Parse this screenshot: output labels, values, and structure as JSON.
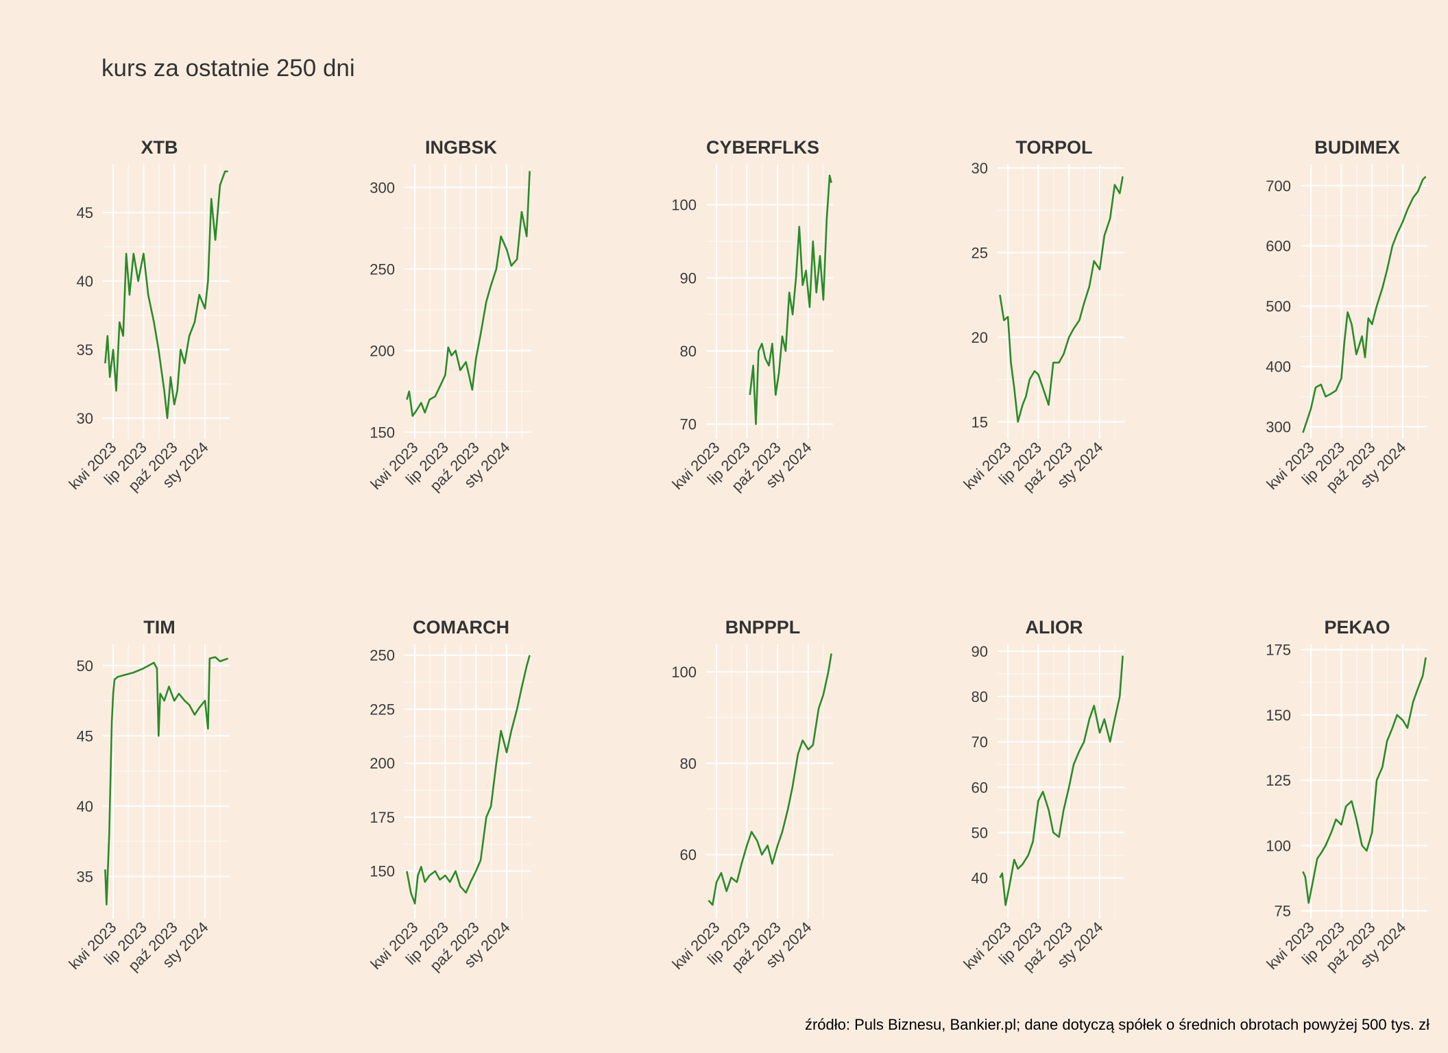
{
  "title": "kurs za ostatnie 250 dni",
  "caption": "źródło: Puls Biznesu, Bankier.pl; dane dotyczą spółek o średnich obrotach powyżej 500 tys. zł",
  "colors": {
    "background": "#faede0",
    "grid": "#ffffff",
    "line": "#2a8a2a",
    "text": "#3b3b3b"
  },
  "chart_data": [
    {
      "type": "line",
      "title": "XTB",
      "x_tick_labels": [
        "kwi 2023",
        "lip 2023",
        "paź 2023",
        "sty 2024"
      ],
      "y_ticks": [
        30,
        35,
        40,
        45
      ],
      "ylim": [
        28.5,
        48.5
      ],
      "series": [
        {
          "x": [
            "2023-03-08",
            "2023-03-15",
            "2023-03-22",
            "2023-04-01",
            "2023-04-10",
            "2023-04-20",
            "2023-05-01",
            "2023-05-10",
            "2023-05-20",
            "2023-06-01",
            "2023-06-15",
            "2023-07-01",
            "2023-07-15",
            "2023-08-01",
            "2023-08-15",
            "2023-09-01",
            "2023-09-10",
            "2023-09-20",
            "2023-10-01",
            "2023-10-10",
            "2023-10-20",
            "2023-11-01",
            "2023-11-15",
            "2023-12-01",
            "2023-12-15",
            "2024-01-01",
            "2024-01-10",
            "2024-01-20",
            "2024-02-01",
            "2024-02-15",
            "2024-03-01",
            "2024-03-10"
          ],
          "y": [
            34,
            36,
            33,
            35,
            32,
            37,
            36,
            42,
            39,
            42,
            40,
            42,
            39,
            37,
            35,
            32,
            30,
            33,
            31,
            32,
            35,
            34,
            36,
            37,
            39,
            38,
            40,
            46,
            43,
            47,
            48,
            48
          ]
        }
      ]
    },
    {
      "type": "line",
      "title": "INGBSK",
      "x_tick_labels": [
        "kwi 2023",
        "lip 2023",
        "paź 2023",
        "sty 2024"
      ],
      "y_ticks": [
        150,
        200,
        250,
        300
      ],
      "ylim": [
        146,
        314
      ],
      "series": [
        {
          "x": [
            "2023-03-08",
            "2023-03-15",
            "2023-03-25",
            "2023-04-05",
            "2023-04-20",
            "2023-05-01",
            "2023-05-15",
            "2023-06-01",
            "2023-06-15",
            "2023-07-01",
            "2023-07-10",
            "2023-07-20",
            "2023-08-01",
            "2023-08-15",
            "2023-09-01",
            "2023-09-10",
            "2023-09-20",
            "2023-10-01",
            "2023-10-15",
            "2023-11-01",
            "2023-11-15",
            "2023-12-01",
            "2023-12-15",
            "2024-01-01",
            "2024-01-15",
            "2024-02-01",
            "2024-02-15",
            "2024-03-01",
            "2024-03-10"
          ],
          "y": [
            170,
            175,
            160,
            163,
            168,
            162,
            170,
            172,
            178,
            185,
            202,
            197,
            200,
            188,
            193,
            185,
            176,
            195,
            210,
            230,
            240,
            250,
            270,
            262,
            252,
            256,
            285,
            270,
            310
          ]
        }
      ]
    },
    {
      "type": "line",
      "title": "CYBERFLKS",
      "x_tick_labels": [
        "kwi 2023",
        "lip 2023",
        "paź 2023",
        "sty 2024"
      ],
      "y_ticks": [
        70,
        80,
        90,
        100
      ],
      "ylim": [
        68,
        105.5
      ],
      "series": [
        {
          "x": [
            "2023-07-10",
            "2023-07-20",
            "2023-07-28",
            "2023-08-05",
            "2023-08-15",
            "2023-08-25",
            "2023-09-05",
            "2023-09-15",
            "2023-09-25",
            "2023-10-05",
            "2023-10-15",
            "2023-10-25",
            "2023-11-05",
            "2023-11-15",
            "2023-11-25",
            "2023-12-05",
            "2023-12-15",
            "2023-12-25",
            "2024-01-05",
            "2024-01-15",
            "2024-01-25",
            "2024-02-05",
            "2024-02-15",
            "2024-02-25",
            "2024-03-05",
            "2024-03-10"
          ],
          "y": [
            74,
            78,
            70,
            80,
            81,
            79,
            78,
            81,
            74,
            77,
            82,
            80,
            88,
            85,
            90,
            97,
            89,
            91,
            86,
            95,
            88,
            93,
            87,
            98,
            104,
            103
          ]
        }
      ]
    },
    {
      "type": "line",
      "title": "TORPOL",
      "x_tick_labels": [
        "kwi 2023",
        "lip 2023",
        "paź 2023",
        "sty 2024"
      ],
      "y_ticks": [
        15,
        20,
        25,
        30
      ],
      "ylim": [
        14,
        30.2
      ],
      "series": [
        {
          "x": [
            "2023-03-08",
            "2023-03-20",
            "2023-04-01",
            "2023-04-10",
            "2023-04-20",
            "2023-05-01",
            "2023-05-15",
            "2023-05-25",
            "2023-06-05",
            "2023-06-20",
            "2023-07-01",
            "2023-07-15",
            "2023-08-01",
            "2023-08-15",
            "2023-09-01",
            "2023-09-15",
            "2023-10-01",
            "2023-10-15",
            "2023-11-01",
            "2023-11-15",
            "2023-12-01",
            "2023-12-15",
            "2024-01-01",
            "2024-01-15",
            "2024-02-01",
            "2024-02-15",
            "2024-03-01",
            "2024-03-10"
          ],
          "y": [
            22.5,
            21,
            21.2,
            18.5,
            17,
            15,
            16,
            16.5,
            17.5,
            18,
            17.8,
            17,
            16,
            18.5,
            18.5,
            19,
            20,
            20.5,
            21,
            22,
            23,
            24.5,
            24,
            26,
            27,
            29,
            28.5,
            29.5
          ]
        }
      ]
    },
    {
      "type": "line",
      "title": "BUDIMEX",
      "x_tick_labels": [
        "kwi 2023",
        "lip 2023",
        "paź 2023",
        "sty 2024"
      ],
      "y_ticks": [
        300,
        400,
        500,
        600,
        700
      ],
      "ylim": [
        280,
        735
      ],
      "series": [
        {
          "x": [
            "2023-03-08",
            "2023-03-20",
            "2023-04-01",
            "2023-04-15",
            "2023-05-01",
            "2023-05-15",
            "2023-06-01",
            "2023-06-15",
            "2023-07-01",
            "2023-07-10",
            "2023-07-20",
            "2023-08-01",
            "2023-08-15",
            "2023-09-01",
            "2023-09-10",
            "2023-09-20",
            "2023-10-01",
            "2023-10-15",
            "2023-11-01",
            "2023-11-15",
            "2023-12-01",
            "2023-12-15",
            "2024-01-01",
            "2024-01-15",
            "2024-02-01",
            "2024-02-15",
            "2024-03-01",
            "2024-03-10"
          ],
          "y": [
            290,
            310,
            330,
            365,
            370,
            350,
            355,
            360,
            380,
            440,
            490,
            470,
            420,
            450,
            415,
            480,
            470,
            500,
            530,
            560,
            600,
            620,
            640,
            660,
            680,
            690,
            710,
            715
          ]
        }
      ]
    },
    {
      "type": "line",
      "title": "TIM",
      "x_tick_labels": [
        "kwi 2023",
        "lip 2023",
        "paź 2023",
        "sty 2024"
      ],
      "y_ticks": [
        35,
        40,
        45,
        50
      ],
      "ylim": [
        32,
        51.5
      ],
      "series": [
        {
          "x": [
            "2023-03-08",
            "2023-03-12",
            "2023-03-20",
            "2023-03-28",
            "2023-04-01",
            "2023-04-05",
            "2023-04-15",
            "2023-05-01",
            "2023-06-01",
            "2023-07-01",
            "2023-08-01",
            "2023-08-10",
            "2023-08-15",
            "2023-08-20",
            "2023-09-01",
            "2023-09-15",
            "2023-10-01",
            "2023-10-15",
            "2023-11-01",
            "2023-11-15",
            "2023-12-01",
            "2023-12-15",
            "2024-01-01",
            "2024-01-10",
            "2024-01-15",
            "2024-02-01",
            "2024-02-15",
            "2024-03-10"
          ],
          "y": [
            35.5,
            33,
            38,
            46,
            48,
            49,
            49.2,
            49.3,
            49.5,
            49.8,
            50.2,
            49.8,
            45,
            48,
            47.5,
            48.5,
            47.5,
            48,
            47.5,
            47.2,
            46.5,
            47,
            47.5,
            45.5,
            50.5,
            50.6,
            50.3,
            50.5
          ]
        }
      ]
    },
    {
      "type": "line",
      "title": "COMARCH",
      "x_tick_labels": [
        "kwi 2023",
        "lip 2023",
        "paź 2023",
        "sty 2024"
      ],
      "y_ticks": [
        150,
        175,
        200,
        225,
        250
      ],
      "ylim": [
        128,
        255
      ],
      "series": [
        {
          "x": [
            "2023-03-08",
            "2023-03-20",
            "2023-04-01",
            "2023-04-10",
            "2023-04-20",
            "2023-05-01",
            "2023-05-15",
            "2023-06-01",
            "2023-06-15",
            "2023-07-01",
            "2023-07-15",
            "2023-08-01",
            "2023-08-15",
            "2023-09-01",
            "2023-09-15",
            "2023-10-01",
            "2023-10-15",
            "2023-11-01",
            "2023-11-15",
            "2023-12-01",
            "2023-12-15",
            "2024-01-01",
            "2024-01-15",
            "2024-02-01",
            "2024-02-15",
            "2024-03-01",
            "2024-03-10"
          ],
          "y": [
            150,
            140,
            135,
            148,
            152,
            145,
            148,
            150,
            146,
            148,
            145,
            150,
            143,
            140,
            145,
            150,
            155,
            175,
            180,
            200,
            215,
            205,
            215,
            225,
            235,
            245,
            250
          ]
        }
      ]
    },
    {
      "type": "line",
      "title": "BNPPPL",
      "x_tick_labels": [
        "kwi 2023",
        "lip 2023",
        "paź 2023",
        "sty 2024"
      ],
      "y_ticks": [
        60,
        80,
        100
      ],
      "ylim": [
        46,
        106
      ],
      "series": [
        {
          "x": [
            "2023-03-08",
            "2023-03-20",
            "2023-04-01",
            "2023-04-15",
            "2023-05-01",
            "2023-05-15",
            "2023-06-01",
            "2023-06-15",
            "2023-07-01",
            "2023-07-15",
            "2023-08-01",
            "2023-08-15",
            "2023-09-01",
            "2023-09-15",
            "2023-10-01",
            "2023-10-15",
            "2023-11-01",
            "2023-11-15",
            "2023-12-01",
            "2023-12-15",
            "2024-01-01",
            "2024-01-15",
            "2024-02-01",
            "2024-02-15",
            "2024-03-01",
            "2024-03-10"
          ],
          "y": [
            50,
            49,
            54,
            56,
            52,
            55,
            54,
            58,
            62,
            65,
            63,
            60,
            62,
            58,
            62,
            65,
            70,
            75,
            82,
            85,
            83,
            84,
            92,
            95,
            100,
            104
          ]
        }
      ]
    },
    {
      "type": "line",
      "title": "ALIOR",
      "x_tick_labels": [
        "kwi 2023",
        "lip 2023",
        "paź 2023",
        "sty 2024"
      ],
      "y_ticks": [
        40,
        50,
        60,
        70,
        80,
        90
      ],
      "ylim": [
        31,
        91.5
      ],
      "series": [
        {
          "x": [
            "2023-03-08",
            "2023-03-15",
            "2023-03-25",
            "2023-04-05",
            "2023-04-20",
            "2023-05-01",
            "2023-05-15",
            "2023-06-01",
            "2023-06-15",
            "2023-07-01",
            "2023-07-15",
            "2023-08-01",
            "2023-08-15",
            "2023-09-01",
            "2023-09-15",
            "2023-10-01",
            "2023-10-15",
            "2023-11-01",
            "2023-11-15",
            "2023-12-01",
            "2023-12-15",
            "2024-01-01",
            "2024-01-15",
            "2024-02-01",
            "2024-02-15",
            "2024-03-01",
            "2024-03-10"
          ],
          "y": [
            40,
            41,
            34,
            38,
            44,
            42,
            43,
            45,
            48,
            57,
            59,
            55,
            50,
            49,
            55,
            60,
            65,
            68,
            70,
            75,
            78,
            72,
            75,
            70,
            75,
            80,
            89
          ]
        }
      ]
    },
    {
      "type": "line",
      "title": "PEKAO",
      "x_tick_labels": [
        "kwi 2023",
        "lip 2023",
        "paź 2023",
        "sty 2024"
      ],
      "y_ticks": [
        75,
        100,
        125,
        150,
        175
      ],
      "ylim": [
        72,
        177
      ],
      "series": [
        {
          "x": [
            "2023-03-08",
            "2023-03-15",
            "2023-03-25",
            "2023-04-05",
            "2023-04-20",
            "2023-05-01",
            "2023-05-15",
            "2023-06-01",
            "2023-06-15",
            "2023-07-01",
            "2023-07-15",
            "2023-08-01",
            "2023-08-15",
            "2023-09-01",
            "2023-09-15",
            "2023-10-01",
            "2023-10-15",
            "2023-11-01",
            "2023-11-15",
            "2023-12-01",
            "2023-12-15",
            "2024-01-01",
            "2024-01-15",
            "2024-02-01",
            "2024-02-15",
            "2024-03-01",
            "2024-03-10"
          ],
          "y": [
            90,
            88,
            78,
            85,
            95,
            97,
            100,
            105,
            110,
            108,
            115,
            117,
            110,
            100,
            98,
            105,
            125,
            130,
            140,
            145,
            150,
            148,
            145,
            155,
            160,
            165,
            172
          ]
        }
      ]
    }
  ]
}
